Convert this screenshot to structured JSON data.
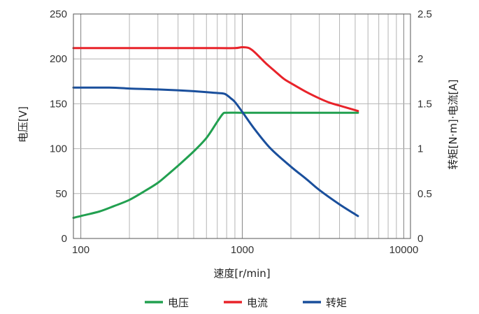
{
  "chart_data": {
    "type": "line",
    "x_scale": "log",
    "xlabel": "速度[r/min]",
    "ylabel_left": "电压[V]",
    "ylabel_right": "转矩[N·m]·电流[A]",
    "xlim": [
      90,
      11000
    ],
    "ylim_left": [
      0,
      250
    ],
    "ylim_right": [
      0,
      2.5
    ],
    "x_ticks": [
      {
        "value": 100,
        "label": "100"
      },
      {
        "value": 1000,
        "label": "1000"
      },
      {
        "value": 10000,
        "label": "10000"
      }
    ],
    "y_ticks_left": [
      {
        "value": 0,
        "label": "0"
      },
      {
        "value": 50,
        "label": "50"
      },
      {
        "value": 100,
        "label": "100"
      },
      {
        "value": 150,
        "label": "150"
      },
      {
        "value": 200,
        "label": "200"
      },
      {
        "value": 250,
        "label": "250"
      }
    ],
    "y_ticks_right": [
      {
        "value": 0,
        "label": "0"
      },
      {
        "value": 0.5,
        "label": "0.5"
      },
      {
        "value": 1,
        "label": "1"
      },
      {
        "value": 1.5,
        "label": "1.5"
      },
      {
        "value": 2,
        "label": "2"
      },
      {
        "value": 2.5,
        "label": "2.5"
      }
    ],
    "grid": true,
    "legend_position": "bottom",
    "series": [
      {
        "name": "电压",
        "axis": "left",
        "color": "#22a050",
        "points": [
          [
            90,
            23
          ],
          [
            100,
            25
          ],
          [
            130,
            30
          ],
          [
            160,
            36
          ],
          [
            200,
            43
          ],
          [
            250,
            53
          ],
          [
            300,
            62
          ],
          [
            350,
            72
          ],
          [
            400,
            81
          ],
          [
            500,
            97
          ],
          [
            600,
            112
          ],
          [
            700,
            130
          ],
          [
            760,
            139
          ],
          [
            800,
            140
          ],
          [
            1000,
            140
          ],
          [
            1500,
            140
          ],
          [
            2000,
            140
          ],
          [
            3000,
            140
          ],
          [
            4000,
            140
          ],
          [
            5200,
            140
          ]
        ]
      },
      {
        "name": "电流",
        "axis": "right",
        "color": "#e8232a",
        "points": [
          [
            90,
            2.12
          ],
          [
            300,
            2.12
          ],
          [
            700,
            2.12
          ],
          [
            900,
            2.12
          ],
          [
            1000,
            2.13
          ],
          [
            1100,
            2.12
          ],
          [
            1200,
            2.07
          ],
          [
            1400,
            1.95
          ],
          [
            1600,
            1.86
          ],
          [
            1800,
            1.78
          ],
          [
            2000,
            1.73
          ],
          [
            2500,
            1.63
          ],
          [
            3000,
            1.56
          ],
          [
            3500,
            1.51
          ],
          [
            4000,
            1.48
          ],
          [
            5200,
            1.42
          ]
        ]
      },
      {
        "name": "转矩",
        "axis": "right",
        "color": "#1a4f9c",
        "points": [
          [
            90,
            1.68
          ],
          [
            150,
            1.68
          ],
          [
            200,
            1.67
          ],
          [
            300,
            1.66
          ],
          [
            400,
            1.65
          ],
          [
            500,
            1.64
          ],
          [
            600,
            1.63
          ],
          [
            700,
            1.62
          ],
          [
            780,
            1.61
          ],
          [
            850,
            1.56
          ],
          [
            900,
            1.52
          ],
          [
            1000,
            1.41
          ],
          [
            1200,
            1.21
          ],
          [
            1500,
            1.0
          ],
          [
            2000,
            0.8
          ],
          [
            2500,
            0.66
          ],
          [
            3000,
            0.54
          ],
          [
            4000,
            0.38
          ],
          [
            5200,
            0.25
          ]
        ]
      }
    ]
  }
}
